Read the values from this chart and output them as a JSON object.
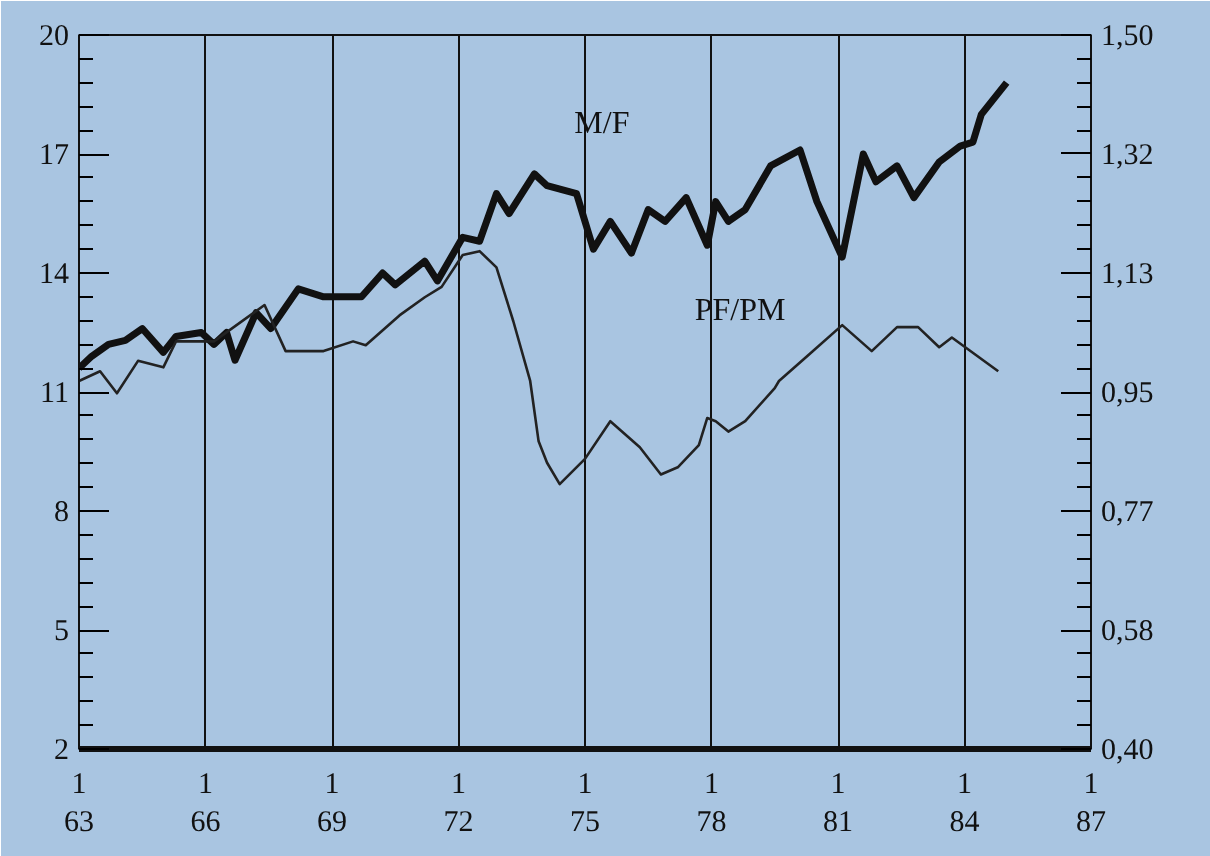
{
  "chart_data": {
    "type": "line",
    "xlim": [
      63,
      87
    ],
    "xticks": [
      63,
      66,
      69,
      72,
      75,
      78,
      81,
      84,
      87
    ],
    "annotations": [
      "1",
      "1",
      "1",
      "1",
      "1",
      "1",
      "1",
      "1",
      "1"
    ],
    "ylim": [
      2,
      20
    ],
    "yticks": [
      2,
      5,
      8,
      11,
      14,
      17,
      20
    ],
    "y2lim": [
      0.4,
      1.5
    ],
    "y2ticks": [
      {
        "value": 0.4,
        "label": "0,40"
      },
      {
        "value": 0.5833,
        "label": "0,58"
      },
      {
        "value": 0.7667,
        "label": "0,77"
      },
      {
        "value": 0.95,
        "label": "0,95"
      },
      {
        "value": 1.1333,
        "label": "1,13"
      },
      {
        "value": 1.3167,
        "label": "1,32"
      },
      {
        "value": 1.5,
        "label": "1,50"
      }
    ],
    "grid": "x",
    "legend": false,
    "marker": "none",
    "line_style": "solid",
    "series": [
      {
        "name": "M/F",
        "color": "#111111",
        "x": [
          63,
          63.3,
          63.7,
          64.1,
          64.5,
          65.0,
          65.3,
          65.9,
          66.2,
          66.5,
          66.7,
          67.2,
          67.55,
          68.2,
          68.8,
          69.7,
          70.2,
          70.5,
          71.2,
          71.5,
          72.1,
          72.5,
          72.9,
          73.2,
          73.8,
          74.1,
          74.8,
          75.2,
          75.6,
          76.1,
          76.5,
          76.9,
          77.4,
          77.9,
          78.1,
          78.4,
          78.8,
          79.4,
          80.1,
          80.5,
          81.1,
          81.6,
          81.9,
          82.4,
          82.8,
          83.4,
          83.9,
          84.2,
          84.4,
          85.0
        ],
        "values": [
          11.6,
          11.9,
          12.2,
          12.3,
          12.6,
          12.0,
          12.4,
          12.5,
          12.2,
          12.5,
          11.8,
          13.0,
          12.6,
          13.6,
          13.4,
          13.4,
          14.0,
          13.7,
          14.3,
          13.8,
          14.9,
          14.8,
          16.0,
          15.5,
          16.5,
          16.2,
          16.0,
          14.6,
          15.3,
          14.5,
          15.6,
          15.3,
          15.9,
          14.7,
          15.8,
          15.3,
          15.6,
          16.7,
          17.1,
          15.8,
          14.4,
          17.0,
          16.3,
          16.7,
          15.9,
          16.8,
          17.2,
          17.3,
          18.0,
          18.8
        ]
      },
      {
        "name": "PF/PM",
        "color": "#222222",
        "axis": "y2",
        "x": [
          63,
          63.5,
          63.9,
          64.4,
          65.0,
          65.3,
          66.2,
          67.4,
          67.9,
          68.8,
          69.5,
          69.8,
          70.6,
          71.2,
          71.6,
          72.1,
          72.5,
          72.9,
          73.3,
          73.7,
          73.9,
          74.1,
          74.4,
          75.0,
          75.6,
          76.3,
          76.8,
          77.2,
          77.7,
          77.9,
          78.1,
          78.4,
          78.8,
          79.5,
          79.6,
          80.3,
          81.1,
          81.8,
          82.4,
          82.9,
          83.4,
          83.7,
          84.8
        ],
        "values": [
          0.967,
          0.982,
          0.948,
          0.998,
          0.988,
          1.028,
          1.028,
          1.084,
          1.013,
          1.013,
          1.028,
          1.022,
          1.068,
          1.096,
          1.112,
          1.161,
          1.167,
          1.142,
          1.059,
          0.967,
          0.874,
          0.841,
          0.808,
          0.847,
          0.905,
          0.865,
          0.823,
          0.834,
          0.868,
          0.91,
          0.905,
          0.889,
          0.905,
          0.956,
          0.967,
          1.007,
          1.053,
          1.013,
          1.05,
          1.05,
          1.019,
          1.034,
          0.982
        ]
      }
    ]
  }
}
